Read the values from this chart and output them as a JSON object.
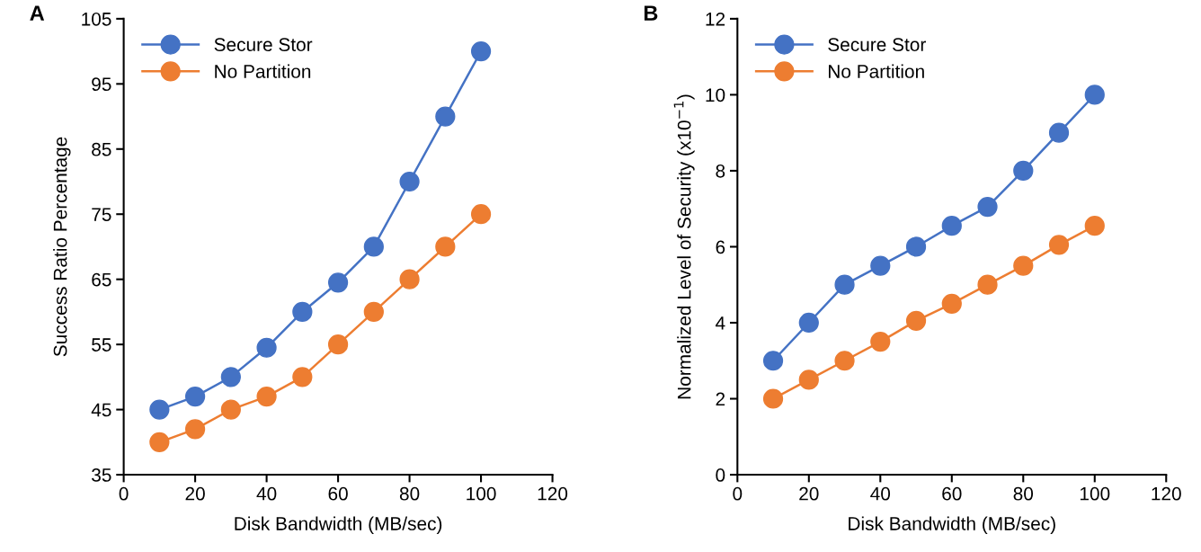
{
  "chart_data": [
    {
      "type": "line",
      "title": "A",
      "xlabel": "Disk Bandwidth (MB/sec)",
      "ylabel": "Success Ratio Percentage",
      "x": [
        10,
        20,
        30,
        40,
        50,
        60,
        70,
        80,
        90,
        100
      ],
      "series": [
        {
          "name": "Secure Stor",
          "color": "#4472c4",
          "values": [
            45,
            47,
            50,
            54.5,
            60,
            64.5,
            70,
            80,
            90,
            100
          ]
        },
        {
          "name": "No Partition",
          "color": "#ed7d31",
          "values": [
            40,
            42,
            45,
            47,
            50,
            55,
            60,
            65,
            70,
            75
          ]
        }
      ],
      "xlim": [
        0,
        120
      ],
      "xticks": [
        0,
        20,
        40,
        60,
        80,
        100,
        120
      ],
      "ylim": [
        35,
        105
      ],
      "yticks": [
        35,
        45,
        55,
        65,
        75,
        85,
        95,
        105
      ],
      "grid": false,
      "legend": "top left",
      "marker": "circle",
      "line_style": "solid"
    },
    {
      "type": "line",
      "title": "B",
      "xlabel": "Disk Bandwidth (MB/sec)",
      "ylabel": "Normalized Level of Security (x10$^{−1}$)",
      "x": [
        10,
        20,
        30,
        40,
        50,
        60,
        70,
        80,
        90,
        100
      ],
      "series": [
        {
          "name": "Secure Stor",
          "color": "#4472c4",
          "values": [
            3,
            4,
            5,
            5.5,
            6,
            6.55,
            7.05,
            8,
            9,
            10
          ]
        },
        {
          "name": "No Partition",
          "color": "#ed7d31",
          "values": [
            2,
            2.5,
            3,
            3.5,
            4.05,
            4.5,
            5,
            5.5,
            6.05,
            6.55
          ]
        }
      ],
      "xlim": [
        0,
        120
      ],
      "xticks": [
        0,
        20,
        40,
        60,
        80,
        100,
        120
      ],
      "ylim": [
        0,
        12
      ],
      "yticks": [
        0,
        2,
        4,
        6,
        8,
        10,
        12
      ],
      "grid": false,
      "legend": "top left",
      "marker": "circle",
      "line_style": "solid"
    }
  ]
}
